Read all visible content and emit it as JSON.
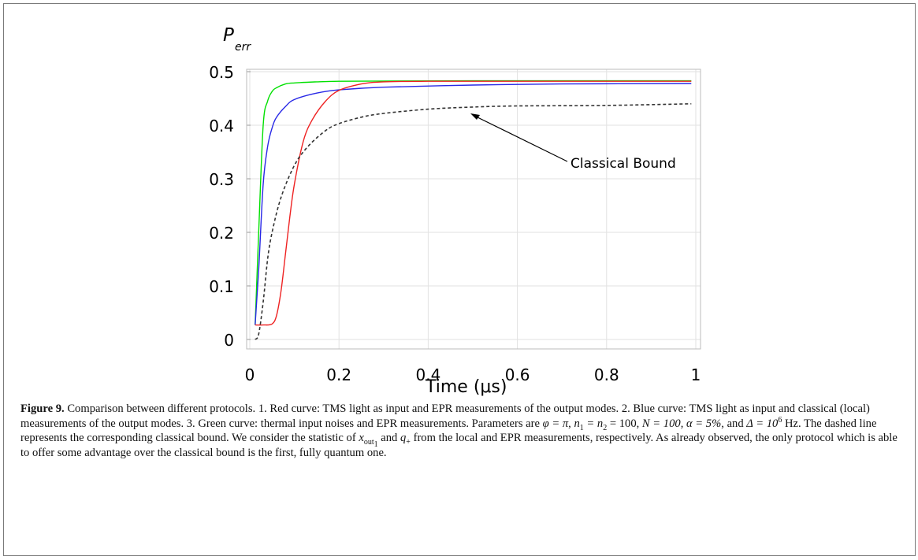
{
  "chart_data": {
    "type": "line",
    "ylabel_main": "P",
    "ylabel_sub": "err",
    "xlabel": "Time (μs)",
    "xlim": [
      0,
      1
    ],
    "ylim": [
      0,
      0.5
    ],
    "xticks": [
      "0",
      "0.2",
      "0.4",
      "0.6",
      "0.8",
      "1"
    ],
    "yticks": [
      "0",
      "0.1",
      "0.2",
      "0.3",
      "0.4",
      "0.5"
    ],
    "grid": true,
    "annotation": "Classical Bound",
    "series": [
      {
        "color": "#00e000",
        "style": "solid",
        "x": [
          0.012,
          0.02,
          0.03,
          0.04,
          0.05,
          0.06,
          0.08,
          0.1,
          0.15,
          0.2,
          0.3,
          0.5,
          0.7,
          0.99
        ],
        "y": [
          0.027,
          0.2,
          0.4,
          0.445,
          0.463,
          0.47,
          0.477,
          0.479,
          0.481,
          0.482,
          0.4825,
          0.483,
          0.483,
          0.483
        ]
      },
      {
        "color": "#2828e6",
        "style": "solid",
        "x": [
          0.012,
          0.02,
          0.03,
          0.04,
          0.05,
          0.06,
          0.08,
          0.1,
          0.15,
          0.2,
          0.3,
          0.5,
          0.7,
          0.99
        ],
        "y": [
          0.027,
          0.13,
          0.29,
          0.36,
          0.395,
          0.415,
          0.435,
          0.448,
          0.46,
          0.466,
          0.471,
          0.475,
          0.477,
          0.478
        ]
      },
      {
        "color": "#ee2222",
        "style": "solid",
        "x": [
          0.012,
          0.03,
          0.05,
          0.06,
          0.07,
          0.08,
          0.09,
          0.1,
          0.12,
          0.14,
          0.17,
          0.2,
          0.25,
          0.3,
          0.4,
          0.6,
          0.8,
          0.99
        ],
        "y": [
          0.027,
          0.027,
          0.029,
          0.045,
          0.09,
          0.16,
          0.23,
          0.29,
          0.37,
          0.41,
          0.445,
          0.465,
          0.477,
          0.481,
          0.482,
          0.482,
          0.482,
          0.482
        ]
      },
      {
        "color": "#333333",
        "style": "dashed",
        "x": [
          0.012,
          0.02,
          0.03,
          0.04,
          0.05,
          0.07,
          0.1,
          0.13,
          0.17,
          0.2,
          0.25,
          0.3,
          0.4,
          0.5,
          0.6,
          0.8,
          0.99
        ],
        "y": [
          0.0,
          0.01,
          0.07,
          0.15,
          0.2,
          0.265,
          0.325,
          0.36,
          0.39,
          0.403,
          0.415,
          0.422,
          0.43,
          0.434,
          0.436,
          0.437,
          0.44
        ]
      }
    ]
  },
  "caption": {
    "label": "Figure 9.",
    "t1": "Comparison between different protocols. 1. Red curve: TMS light as input and EPR measurements of the output modes. 2. Blue curve: TMS light as input and classical (local) measurements of the output modes. 3. Green curve: thermal input noises and EPR measurements. Parameters are ",
    "phi": "φ = π",
    "n12": "n",
    "n12b": " = n",
    "n12c": " = 100",
    "N": "N = 100",
    "alpha": "α = 5%",
    "delta": "Δ = 10",
    "hz": " Hz. The dashed line represents the corresponding classical bound. We consider the statistic of ",
    "xout": "x",
    "xoutsub": "out",
    "and": " and ",
    "q": "q",
    "qsub": "+",
    "t2": " from the local and EPR measurements, respectively. As already observed, the only protocol which is able to offer some advantage over the classical bound is the first, fully quantum one."
  }
}
